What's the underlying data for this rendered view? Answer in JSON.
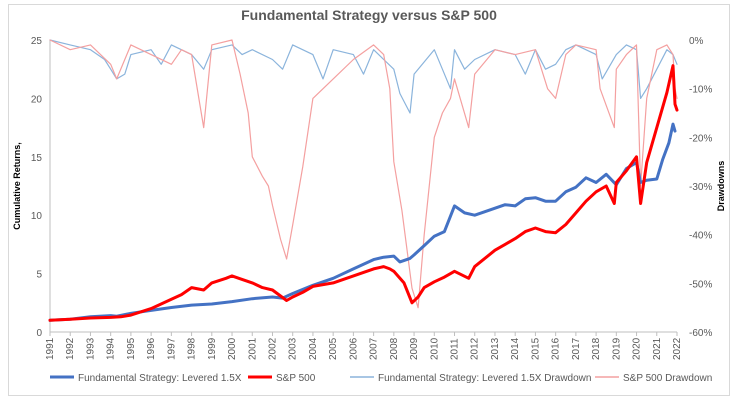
{
  "chart_data": {
    "type": "line",
    "title": "Fundamental Strategy versus S&P 500",
    "ylabel": "Cumulative Returns,",
    "y2label": "Drawdowns",
    "xlim": [
      1991,
      2022
    ],
    "ylim": [
      0,
      25
    ],
    "y2lim": [
      -60,
      0
    ],
    "x_ticks": [
      "1991",
      "1992",
      "1993",
      "1994",
      "1995",
      "1996",
      "1997",
      "1998",
      "1999",
      "2000",
      "2001",
      "2002",
      "2003",
      "2004",
      "2005",
      "2006",
      "2007",
      "2008",
      "2009",
      "2010",
      "2011",
      "2012",
      "2013",
      "2014",
      "2015",
      "2016",
      "2017",
      "2018",
      "2019",
      "2020",
      "2021",
      "2022"
    ],
    "y_ticks": [
      "0",
      "5",
      "10",
      "15",
      "20",
      "25"
    ],
    "y2_ticks": [
      "0%",
      "-10%",
      "-20%",
      "-30%",
      "-40%",
      "-50%",
      "-60%"
    ],
    "gridlines": false,
    "legend_position": "bottom",
    "series": [
      {
        "name": "Fundamental Strategy: Levered 1.5X",
        "axis": "left",
        "color": "#4472c4",
        "x": [
          1991.0,
          1992.0,
          1993.0,
          1994.0,
          1994.3,
          1995.0,
          1996.0,
          1997.0,
          1998.0,
          1999.0,
          2000.0,
          2001.0,
          2002.0,
          2002.5,
          2003.0,
          2004.0,
          2005.0,
          2006.0,
          2007.0,
          2007.5,
          2008.0,
          2008.3,
          2008.8,
          2009.0,
          2009.5,
          2010.0,
          2010.5,
          2011.0,
          2011.5,
          2012.0,
          2012.5,
          2013.0,
          2013.5,
          2014.0,
          2014.5,
          2015.0,
          2015.5,
          2016.0,
          2016.5,
          2017.0,
          2017.5,
          2018.0,
          2018.5,
          2019.0,
          2019.5,
          2020.0,
          2020.2,
          2020.5,
          2021.0,
          2021.3,
          2021.6,
          2021.8,
          2021.9
        ],
        "y": [
          1.0,
          1.1,
          1.3,
          1.4,
          1.35,
          1.6,
          1.85,
          2.1,
          2.3,
          2.4,
          2.6,
          2.85,
          3.0,
          2.9,
          3.3,
          4.0,
          4.6,
          5.4,
          6.2,
          6.4,
          6.5,
          6.0,
          6.3,
          6.6,
          7.4,
          8.2,
          8.6,
          10.8,
          10.2,
          10.0,
          10.3,
          10.6,
          10.9,
          10.8,
          11.4,
          11.5,
          11.2,
          11.2,
          12.0,
          12.4,
          13.2,
          12.8,
          13.5,
          12.6,
          14.0,
          14.5,
          12.8,
          13.0,
          13.1,
          14.8,
          16.2,
          17.8,
          17.2
        ]
      },
      {
        "name": "S&P 500",
        "axis": "left",
        "color": "#ff0000",
        "x": [
          1991.0,
          1992.0,
          1993.0,
          1994.0,
          1994.5,
          1995.0,
          1996.0,
          1997.0,
          1997.5,
          1998.0,
          1998.6,
          1999.0,
          1999.7,
          2000.0,
          2000.5,
          2001.0,
          2001.5,
          2002.0,
          2002.7,
          2003.0,
          2003.5,
          2004.0,
          2005.0,
          2006.0,
          2007.0,
          2007.5,
          2007.8,
          2008.0,
          2008.5,
          2008.9,
          2009.2,
          2009.5,
          2010.0,
          2010.5,
          2011.0,
          2011.7,
          2012.0,
          2013.0,
          2013.5,
          2014.0,
          2014.5,
          2015.0,
          2015.5,
          2016.0,
          2016.5,
          2017.0,
          2017.5,
          2018.0,
          2018.5,
          2018.9,
          2019.0,
          2019.5,
          2020.0,
          2020.2,
          2020.5,
          2021.0,
          2021.5,
          2021.8,
          2021.9,
          2022.0
        ],
        "y": [
          1.0,
          1.1,
          1.2,
          1.25,
          1.3,
          1.45,
          2.0,
          2.8,
          3.2,
          3.8,
          3.6,
          4.2,
          4.6,
          4.8,
          4.5,
          4.2,
          3.8,
          3.6,
          2.7,
          3.0,
          3.4,
          3.9,
          4.2,
          4.8,
          5.4,
          5.6,
          5.4,
          5.2,
          4.2,
          2.5,
          3.0,
          3.8,
          4.3,
          4.7,
          5.2,
          4.6,
          5.6,
          7.0,
          7.5,
          8.0,
          8.6,
          8.9,
          8.6,
          8.5,
          9.2,
          10.2,
          11.2,
          12.0,
          12.5,
          11.0,
          12.8,
          13.8,
          15.0,
          11.0,
          14.5,
          17.5,
          20.5,
          22.8,
          19.5,
          19.0
        ]
      },
      {
        "name": "Fundamental Strategy: Levered 1.5X Drawdown",
        "axis": "right",
        "color": "#8bb4dc",
        "x": [
          1991.0,
          1992.0,
          1993.0,
          1993.7,
          1994.0,
          1994.3,
          1994.7,
          1995.0,
          1996.0,
          1996.5,
          1997.0,
          1998.0,
          1998.6,
          1999.0,
          2000.0,
          2000.5,
          2001.0,
          2002.0,
          2002.5,
          2003.0,
          2004.0,
          2004.5,
          2005.0,
          2006.0,
          2006.5,
          2007.0,
          2007.5,
          2008.0,
          2008.3,
          2008.8,
          2009.0,
          2010.0,
          2010.4,
          2010.8,
          2011.0,
          2011.5,
          2012.0,
          2013.0,
          2014.0,
          2014.5,
          2015.0,
          2015.5,
          2016.0,
          2016.5,
          2017.0,
          2018.0,
          2018.3,
          2019.0,
          2019.5,
          2020.0,
          2020.2,
          2020.5,
          2021.0,
          2021.5,
          2021.8,
          2022.0
        ],
        "y": [
          0,
          -1,
          -2,
          -4,
          -6,
          -8,
          -7,
          -3,
          -2,
          -5,
          -1,
          -3,
          -6,
          -2,
          -1,
          -3,
          -2,
          -4,
          -6,
          -1,
          -3,
          -8,
          -2,
          -3,
          -7,
          -2,
          -4,
          -6,
          -11,
          -15,
          -7,
          -2,
          -6,
          -10,
          -2,
          -6,
          -4,
          -2,
          -3,
          -7,
          -2,
          -6,
          -5,
          -2,
          -1,
          -3,
          -8,
          -3,
          -1,
          -2,
          -12,
          -10,
          -6,
          -2,
          -3,
          -5
        ]
      },
      {
        "name": "S&P 500 Drawdown",
        "axis": "right",
        "color": "#f4a0a0",
        "x": [
          1991.0,
          1992.0,
          1993.0,
          1994.0,
          1994.3,
          1995.0,
          1996.0,
          1997.0,
          1997.5,
          1998.0,
          1998.6,
          1999.0,
          2000.0,
          2000.4,
          2000.8,
          2001.0,
          2001.5,
          2001.8,
          2002.0,
          2002.4,
          2002.7,
          2003.0,
          2003.5,
          2004.0,
          2005.0,
          2006.0,
          2007.0,
          2007.5,
          2007.8,
          2008.0,
          2008.4,
          2008.9,
          2009.2,
          2009.5,
          2010.0,
          2010.4,
          2010.8,
          2011.0,
          2011.7,
          2012.0,
          2013.0,
          2014.0,
          2015.0,
          2015.6,
          2016.0,
          2016.5,
          2017.0,
          2018.0,
          2018.2,
          2018.9,
          2019.0,
          2019.5,
          2020.0,
          2020.2,
          2020.5,
          2021.0,
          2021.5,
          2021.8,
          2021.9,
          2022.0
        ],
        "y": [
          0,
          -2,
          -1,
          -5,
          -8,
          -1,
          -3,
          -5,
          -2,
          -3,
          -18,
          -1,
          0,
          -7,
          -15,
          -24,
          -28,
          -30,
          -34,
          -41,
          -45,
          -38,
          -26,
          -12,
          -8,
          -4,
          -1,
          -3,
          -10,
          -25,
          -35,
          -51,
          -55,
          -40,
          -20,
          -15,
          -12,
          -8,
          -18,
          -7,
          -2,
          -3,
          -2,
          -10,
          -12,
          -3,
          -1,
          -2,
          -10,
          -18,
          -6,
          -3,
          -1,
          -30,
          -12,
          -2,
          -1,
          -3,
          -10,
          -12
        ]
      }
    ]
  }
}
